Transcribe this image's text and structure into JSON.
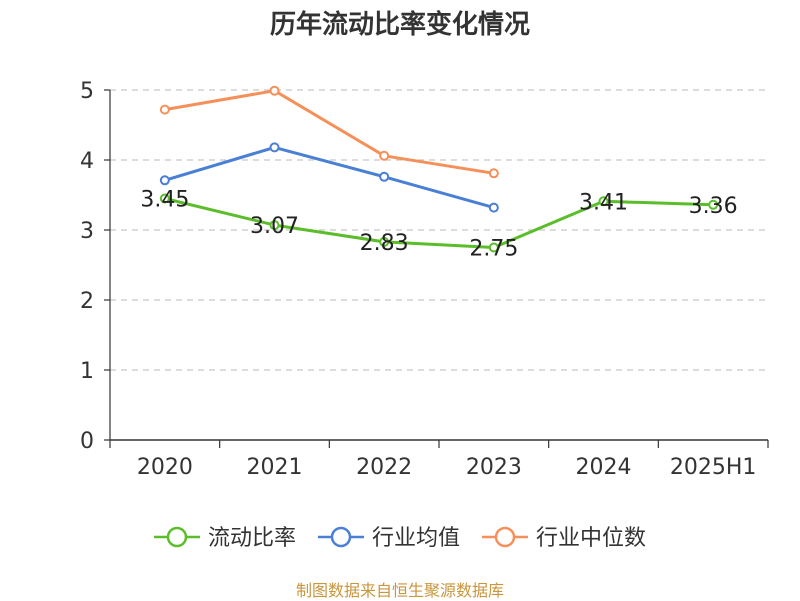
{
  "chart_data": {
    "type": "line",
    "title": "历年流动比率变化情况",
    "categories": [
      "2020",
      "2021",
      "2022",
      "2023",
      "2024",
      "2025H1"
    ],
    "ylim": [
      0,
      5
    ],
    "yticks": [
      "0",
      "1",
      "2",
      "3",
      "4",
      "5"
    ],
    "grid": "horizontal-dashed",
    "legend_position": "bottom",
    "series": [
      {
        "name": "流动比率",
        "color": "#5cbd2a",
        "values": [
          3.45,
          3.07,
          2.83,
          2.75,
          3.41,
          3.36
        ],
        "labels": [
          "3.45",
          "3.07",
          "2.83",
          "2.75",
          "3.41",
          "3.36"
        ]
      },
      {
        "name": "行业均值",
        "color": "#4a7fd6",
        "values": [
          3.71,
          4.18,
          3.76,
          3.32,
          null,
          null
        ]
      },
      {
        "name": "行业中位数",
        "color": "#f5905a",
        "values": [
          4.72,
          4.99,
          4.06,
          3.81,
          null,
          null
        ]
      }
    ]
  },
  "source_note": "制图数据来自恒生聚源数据库"
}
